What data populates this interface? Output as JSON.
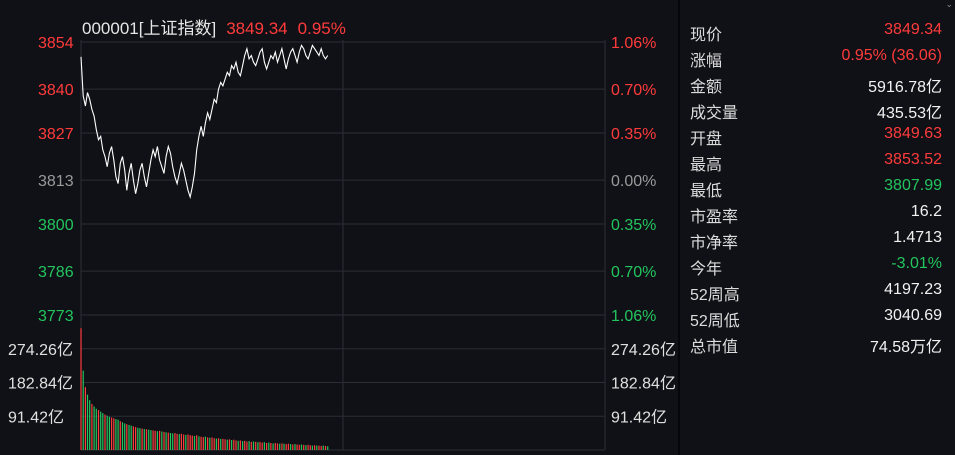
{
  "header": {
    "code_name": "000001[上证指数]",
    "price": "3849.34",
    "change_pct": "0.95%"
  },
  "quote_panel": {
    "rows": [
      {
        "label": "现价",
        "value": "3849.34",
        "color": "red"
      },
      {
        "label": "涨幅",
        "value": "0.95% (36.06)",
        "color": "red"
      },
      {
        "label": "金额",
        "value": "5916.78亿",
        "color": "white"
      },
      {
        "label": "成交量",
        "value": "435.53亿",
        "color": "white"
      },
      {
        "label": "开盘",
        "value": "3849.63",
        "color": "red"
      },
      {
        "label": "最高",
        "value": "3853.52",
        "color": "red"
      },
      {
        "label": "最低",
        "value": "3807.99",
        "color": "green"
      },
      {
        "label": "市盈率",
        "value": "16.2",
        "color": "white"
      },
      {
        "label": "市净率",
        "value": "1.4713",
        "color": "white"
      },
      {
        "label": "今年",
        "value": "-3.01%",
        "color": "green"
      },
      {
        "label": "52周高",
        "value": "4197.23",
        "color": "white"
      },
      {
        "label": "52周低",
        "value": "3040.69",
        "color": "white"
      },
      {
        "label": "总市值",
        "value": "74.58万亿",
        "color": "white"
      }
    ]
  },
  "colors": {
    "up": "#ff3b3b",
    "down": "#22c55e",
    "neutral": "#9a9a9a",
    "grid": "#2a2e37",
    "line": "#ffffff",
    "background": "#101116"
  },
  "chart_data": {
    "type": "line",
    "price_axis": {
      "ylim": [
        3773,
        3854
      ],
      "ticks": [
        {
          "value": 3854,
          "label": "3854",
          "pct": "1.06%",
          "color": "red"
        },
        {
          "value": 3840,
          "label": "3840",
          "pct": "0.70%",
          "color": "red"
        },
        {
          "value": 3827,
          "label": "3827",
          "pct": "0.35%",
          "color": "red"
        },
        {
          "value": 3813,
          "label": "3813",
          "pct": "0.00%",
          "color": "neutral"
        },
        {
          "value": 3800,
          "label": "3800",
          "pct": "0.35%",
          "color": "green"
        },
        {
          "value": 3786,
          "label": "3786",
          "pct": "0.70%",
          "color": "green"
        },
        {
          "value": 3773,
          "label": "3773",
          "pct": "1.06%",
          "color": "green"
        }
      ]
    },
    "session_total_minutes": 240,
    "series": [
      {
        "values": [
          3849.6,
          3838,
          3835,
          3839,
          3837,
          3834,
          3832,
          3828,
          3825,
          3826,
          3822,
          3820,
          3817,
          3821,
          3823,
          3819,
          3814,
          3812,
          3818,
          3820,
          3816,
          3810,
          3815,
          3818,
          3813,
          3809,
          3812,
          3816,
          3818,
          3814,
          3811,
          3815,
          3819,
          3822,
          3820,
          3823,
          3819,
          3817,
          3815,
          3820,
          3823,
          3821,
          3817,
          3814,
          3812,
          3815,
          3818,
          3816,
          3813,
          3810,
          3808,
          3811,
          3815,
          3822,
          3826,
          3829,
          3826,
          3830,
          3833,
          3831,
          3834,
          3837,
          3836,
          3840,
          3842,
          3841,
          3843,
          3845,
          3844,
          3847,
          3846,
          3848,
          3845,
          3844,
          3847,
          3850,
          3852,
          3849,
          3850,
          3848,
          3847,
          3849,
          3851,
          3852,
          3848,
          3846,
          3848,
          3850,
          3849,
          3851,
          3848,
          3850,
          3852,
          3849,
          3846,
          3849,
          3851,
          3852,
          3850,
          3848,
          3851,
          3853,
          3852,
          3850,
          3849,
          3851,
          3853,
          3852,
          3851,
          3850,
          3852,
          3850,
          3849,
          3850
        ]
      }
    ],
    "volume_axis": {
      "ticks": [
        {
          "value": 274.26,
          "label": "274.26亿"
        },
        {
          "value": 182.84,
          "label": "182.84亿"
        },
        {
          "value": 91.42,
          "label": "91.42亿"
        }
      ],
      "ymax": 365.68
    },
    "volume": [
      {
        "v": 330,
        "d": "up"
      },
      {
        "v": 215,
        "d": "down"
      },
      {
        "v": 170,
        "d": "up"
      },
      {
        "v": 150,
        "d": "down"
      },
      {
        "v": 135,
        "d": "down"
      },
      {
        "v": 125,
        "d": "up"
      },
      {
        "v": 118,
        "d": "down"
      },
      {
        "v": 112,
        "d": "down"
      },
      {
        "v": 108,
        "d": "up"
      },
      {
        "v": 104,
        "d": "down"
      },
      {
        "v": 100,
        "d": "down"
      },
      {
        "v": 96,
        "d": "up"
      },
      {
        "v": 93,
        "d": "down"
      },
      {
        "v": 90,
        "d": "down"
      },
      {
        "v": 88,
        "d": "up"
      },
      {
        "v": 86,
        "d": "up"
      },
      {
        "v": 84,
        "d": "down"
      },
      {
        "v": 82,
        "d": "down"
      },
      {
        "v": 78,
        "d": "up"
      },
      {
        "v": 75,
        "d": "down"
      },
      {
        "v": 72,
        "d": "down"
      },
      {
        "v": 70,
        "d": "up"
      },
      {
        "v": 68,
        "d": "down"
      },
      {
        "v": 66,
        "d": "down"
      },
      {
        "v": 64,
        "d": "up"
      },
      {
        "v": 62,
        "d": "up"
      },
      {
        "v": 60,
        "d": "down"
      },
      {
        "v": 59,
        "d": "down"
      },
      {
        "v": 58,
        "d": "up"
      },
      {
        "v": 57,
        "d": "down"
      },
      {
        "v": 56,
        "d": "up"
      },
      {
        "v": 55,
        "d": "down"
      },
      {
        "v": 54,
        "d": "down"
      },
      {
        "v": 53,
        "d": "up"
      },
      {
        "v": 52,
        "d": "up"
      },
      {
        "v": 51,
        "d": "down"
      },
      {
        "v": 52,
        "d": "up"
      },
      {
        "v": 50,
        "d": "down"
      },
      {
        "v": 49,
        "d": "up"
      },
      {
        "v": 48,
        "d": "down"
      },
      {
        "v": 47,
        "d": "up"
      },
      {
        "v": 46,
        "d": "down"
      },
      {
        "v": 45,
        "d": "down"
      },
      {
        "v": 46,
        "d": "up"
      },
      {
        "v": 44,
        "d": "up"
      },
      {
        "v": 43,
        "d": "down"
      },
      {
        "v": 44,
        "d": "up"
      },
      {
        "v": 42,
        "d": "up"
      },
      {
        "v": 41,
        "d": "down"
      },
      {
        "v": 42,
        "d": "up"
      },
      {
        "v": 40,
        "d": "up"
      },
      {
        "v": 39,
        "d": "up"
      },
      {
        "v": 38,
        "d": "down"
      },
      {
        "v": 40,
        "d": "up"
      },
      {
        "v": 37,
        "d": "down"
      },
      {
        "v": 36,
        "d": "up"
      },
      {
        "v": 35,
        "d": "up"
      },
      {
        "v": 36,
        "d": "down"
      },
      {
        "v": 34,
        "d": "up"
      },
      {
        "v": 33,
        "d": "down"
      },
      {
        "v": 34,
        "d": "up"
      },
      {
        "v": 32,
        "d": "up"
      },
      {
        "v": 31,
        "d": "down"
      },
      {
        "v": 32,
        "d": "up"
      },
      {
        "v": 30,
        "d": "down"
      },
      {
        "v": 30,
        "d": "up"
      },
      {
        "v": 29,
        "d": "up"
      },
      {
        "v": 28,
        "d": "down"
      },
      {
        "v": 29,
        "d": "up"
      },
      {
        "v": 27,
        "d": "down"
      },
      {
        "v": 28,
        "d": "up"
      },
      {
        "v": 26,
        "d": "up"
      },
      {
        "v": 25,
        "d": "down"
      },
      {
        "v": 26,
        "d": "up"
      },
      {
        "v": 24,
        "d": "down"
      },
      {
        "v": 25,
        "d": "up"
      },
      {
        "v": 23,
        "d": "up"
      },
      {
        "v": 24,
        "d": "down"
      },
      {
        "v": 22,
        "d": "up"
      },
      {
        "v": 23,
        "d": "down"
      },
      {
        "v": 22,
        "d": "up"
      },
      {
        "v": 21,
        "d": "down"
      },
      {
        "v": 22,
        "d": "up"
      },
      {
        "v": 20,
        "d": "up"
      },
      {
        "v": 21,
        "d": "down"
      },
      {
        "v": 19,
        "d": "up"
      },
      {
        "v": 20,
        "d": "down"
      },
      {
        "v": 19,
        "d": "up"
      },
      {
        "v": 18,
        "d": "down"
      },
      {
        "v": 19,
        "d": "up"
      },
      {
        "v": 18,
        "d": "up"
      },
      {
        "v": 17,
        "d": "down"
      },
      {
        "v": 18,
        "d": "up"
      },
      {
        "v": 17,
        "d": "down"
      },
      {
        "v": 16,
        "d": "up"
      },
      {
        "v": 17,
        "d": "up"
      },
      {
        "v": 16,
        "d": "down"
      },
      {
        "v": 15,
        "d": "up"
      },
      {
        "v": 16,
        "d": "down"
      },
      {
        "v": 15,
        "d": "up"
      },
      {
        "v": 14,
        "d": "up"
      },
      {
        "v": 15,
        "d": "down"
      },
      {
        "v": 14,
        "d": "up"
      },
      {
        "v": 13,
        "d": "down"
      },
      {
        "v": 14,
        "d": "up"
      },
      {
        "v": 13,
        "d": "up"
      },
      {
        "v": 12,
        "d": "down"
      },
      {
        "v": 13,
        "d": "up"
      },
      {
        "v": 12,
        "d": "down"
      },
      {
        "v": 12,
        "d": "up"
      },
      {
        "v": 11,
        "d": "up"
      },
      {
        "v": 12,
        "d": "down"
      },
      {
        "v": 11,
        "d": "up"
      },
      {
        "v": 10,
        "d": "down"
      }
    ]
  }
}
